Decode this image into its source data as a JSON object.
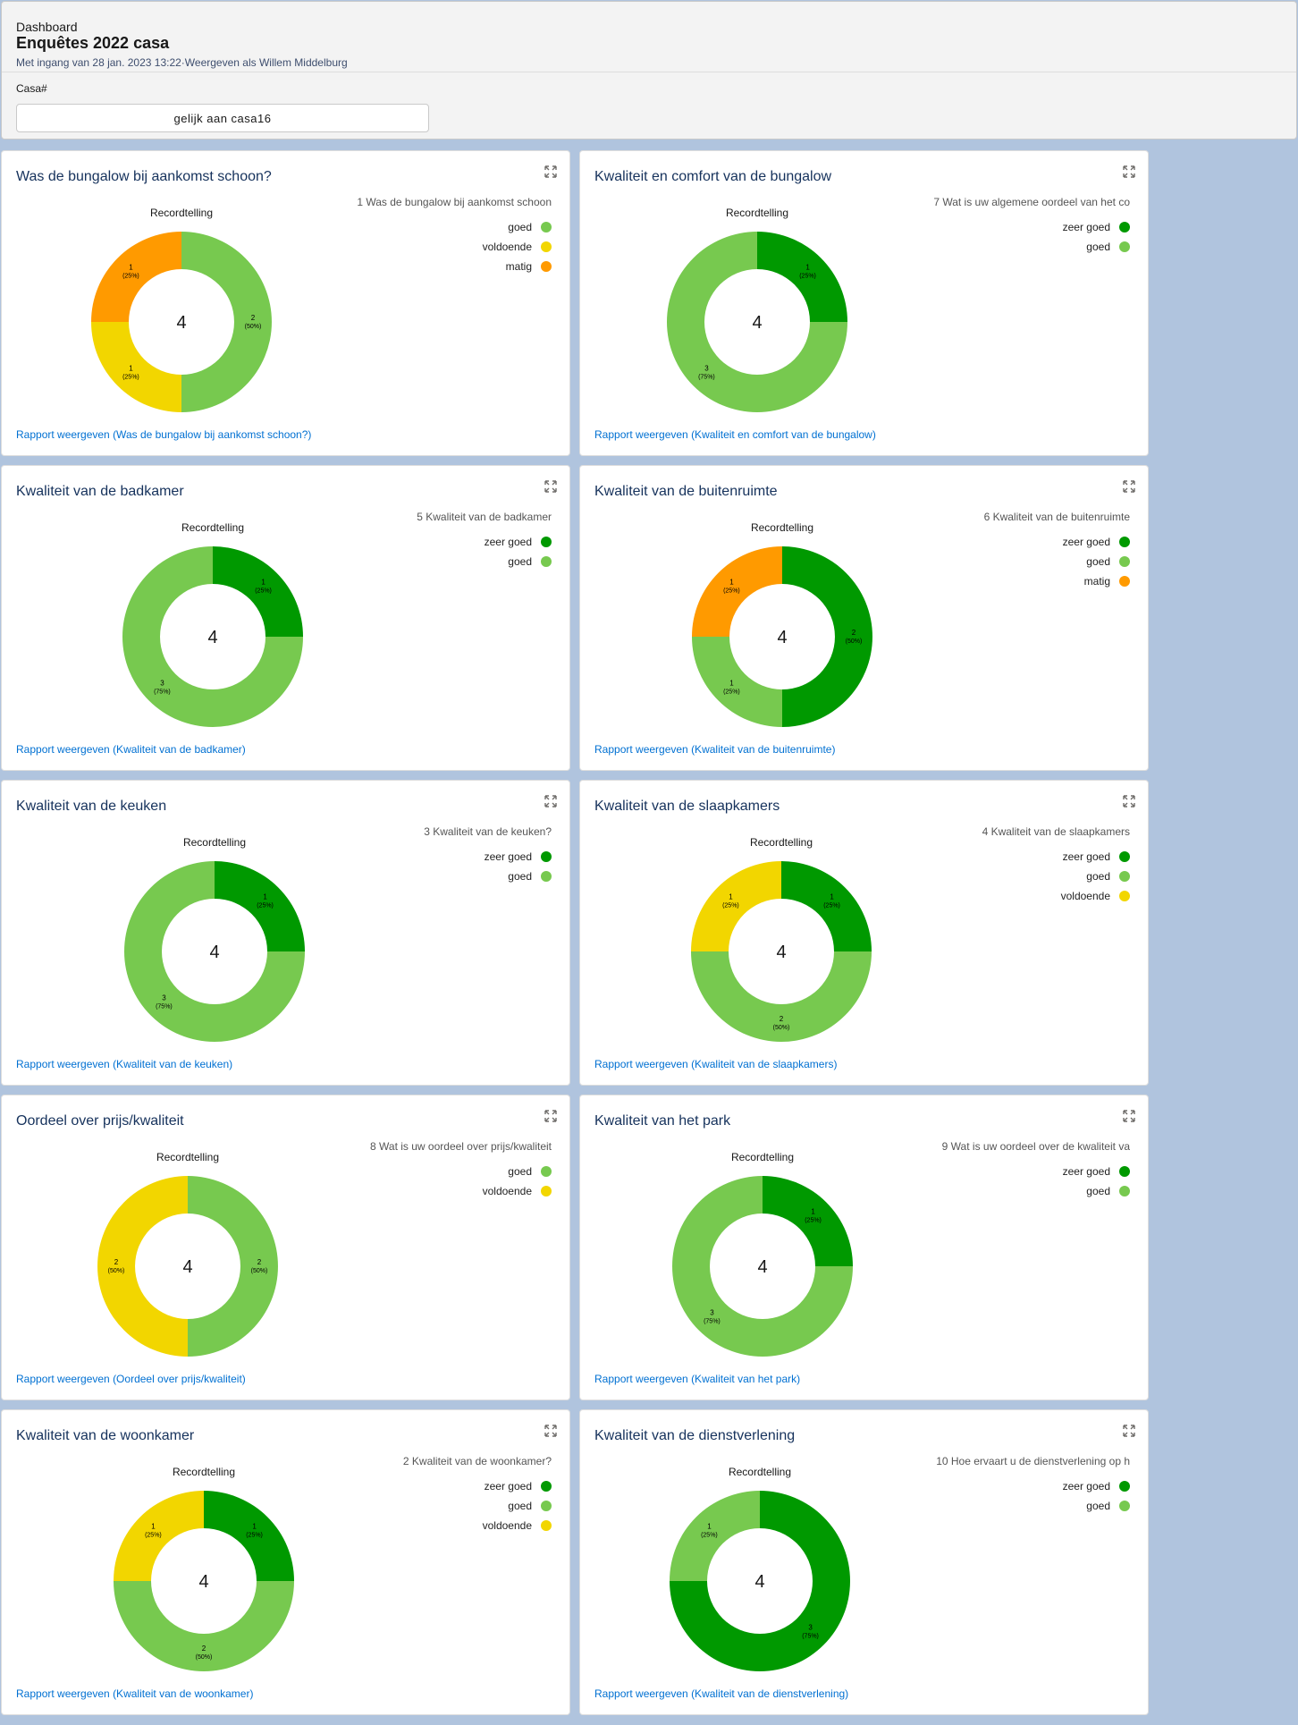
{
  "header": {
    "label": "Dashboard",
    "title": "Enquêtes 2022 casa",
    "subtitle": "Met ingang van 28 jan. 2023 13:22·Weergeven als Willem Middelburg",
    "filter_label": "Casa#",
    "filter_value": "gelijk aan casa16"
  },
  "colors": {
    "zeer goed": "#009900",
    "goed": "#77c94f",
    "voldoende": "#f2d600",
    "matig": "#ff9a00"
  },
  "cards": [
    {
      "title": "Was de bungalow bij aankomst schoon?",
      "chart_label": "Recordtelling",
      "legend_title": "1 Was de bungalow bij aankomst schoon",
      "total": "4",
      "link": "Rapport weergeven (Was de bungalow bij aankomst schoon?)",
      "chart_data": {
        "type": "pie",
        "donut": true,
        "legend": "right",
        "slices": [
          {
            "label": "goed",
            "value": 2,
            "pct": "(50%)"
          },
          {
            "label": "voldoende",
            "value": 1,
            "pct": "(25%)"
          },
          {
            "label": "matig",
            "value": 1,
            "pct": "(25%)"
          }
        ]
      }
    },
    {
      "title": "Kwaliteit en comfort van de bungalow",
      "chart_label": "Recordtelling",
      "legend_title": "7 Wat is uw  algemene oordeel van het co",
      "total": "4",
      "link": "Rapport weergeven (Kwaliteit en comfort van de bungalow)",
      "chart_data": {
        "type": "pie",
        "donut": true,
        "legend": "right",
        "slices": [
          {
            "label": "zeer goed",
            "value": 1,
            "pct": "(25%)"
          },
          {
            "label": "goed",
            "value": 3,
            "pct": "(75%)"
          }
        ]
      }
    },
    {
      "title": "Kwaliteit van de badkamer",
      "chart_label": "Recordtelling",
      "legend_title": "5 Kwaliteit van de badkamer",
      "total": "4",
      "link": "Rapport weergeven (Kwaliteit van de badkamer)",
      "chart_data": {
        "type": "pie",
        "donut": true,
        "legend": "right",
        "slices": [
          {
            "label": "zeer goed",
            "value": 1,
            "pct": "(25%)"
          },
          {
            "label": "goed",
            "value": 3,
            "pct": "(75%)"
          }
        ]
      }
    },
    {
      "title": "Kwaliteit van de buitenruimte",
      "chart_label": "Recordtelling",
      "legend_title": "6 Kwaliteit van de buitenruimte",
      "total": "4",
      "link": "Rapport weergeven (Kwaliteit van de buitenruimte)",
      "chart_data": {
        "type": "pie",
        "donut": true,
        "legend": "right",
        "slices": [
          {
            "label": "zeer goed",
            "value": 2,
            "pct": "(50%)"
          },
          {
            "label": "goed",
            "value": 1,
            "pct": "(25%)"
          },
          {
            "label": "matig",
            "value": 1,
            "pct": "(25%)"
          }
        ]
      }
    },
    {
      "title": "Kwaliteit van de keuken",
      "chart_label": "Recordtelling",
      "legend_title": "3 Kwaliteit van de keuken?",
      "total": "4",
      "link": "Rapport weergeven (Kwaliteit van de keuken)",
      "chart_data": {
        "type": "pie",
        "donut": true,
        "legend": "right",
        "slices": [
          {
            "label": "zeer goed",
            "value": 1,
            "pct": "(25%)"
          },
          {
            "label": "goed",
            "value": 3,
            "pct": "(75%)"
          }
        ]
      }
    },
    {
      "title": "Kwaliteit van de slaapkamers",
      "chart_label": "Recordtelling",
      "legend_title": "4 Kwaliteit van de slaapkamers",
      "total": "4",
      "link": "Rapport weergeven (Kwaliteit van de slaapkamers)",
      "chart_data": {
        "type": "pie",
        "donut": true,
        "legend": "right",
        "slices": [
          {
            "label": "zeer goed",
            "value": 1,
            "pct": "(25%)"
          },
          {
            "label": "goed",
            "value": 2,
            "pct": "(50%)"
          },
          {
            "label": "voldoende",
            "value": 1,
            "pct": "(25%)"
          }
        ]
      }
    },
    {
      "title": "Oordeel over prijs/kwaliteit",
      "chart_label": "Recordtelling",
      "legend_title": "8 Wat is uw oordeel over prijs/kwaliteit",
      "total": "4",
      "link": "Rapport weergeven (Oordeel over prijs/kwaliteit)",
      "chart_data": {
        "type": "pie",
        "donut": true,
        "legend": "right",
        "slices": [
          {
            "label": "goed",
            "value": 2,
            "pct": "(50%)"
          },
          {
            "label": "voldoende",
            "value": 2,
            "pct": "(50%)"
          }
        ]
      }
    },
    {
      "title": "Kwaliteit van het park",
      "chart_label": "Recordtelling",
      "legend_title": "9 Wat is uw oordeel over de kwaliteit va",
      "total": "4",
      "link": "Rapport weergeven (Kwaliteit van het park)",
      "chart_data": {
        "type": "pie",
        "donut": true,
        "legend": "right",
        "slices": [
          {
            "label": "zeer goed",
            "value": 1,
            "pct": "(25%)"
          },
          {
            "label": "goed",
            "value": 3,
            "pct": "(75%)"
          }
        ]
      }
    },
    {
      "title": "Kwaliteit van de woonkamer",
      "chart_label": "Recordtelling",
      "legend_title": "2 Kwaliteit van de woonkamer?",
      "total": "4",
      "link": "Rapport weergeven (Kwaliteit van de woonkamer)",
      "chart_data": {
        "type": "pie",
        "donut": true,
        "legend": "right",
        "slices": [
          {
            "label": "zeer goed",
            "value": 1,
            "pct": "(25%)"
          },
          {
            "label": "goed",
            "value": 2,
            "pct": "(50%)"
          },
          {
            "label": "voldoende",
            "value": 1,
            "pct": "(25%)"
          }
        ]
      }
    },
    {
      "title": "Kwaliteit van de dienstverlening",
      "chart_label": "Recordtelling",
      "legend_title": "10 Hoe ervaart u de dienstverlening op h",
      "total": "4",
      "link": "Rapport weergeven (Kwaliteit van de dienstverlening)",
      "chart_data": {
        "type": "pie",
        "donut": true,
        "legend": "right",
        "slices": [
          {
            "label": "zeer goed",
            "value": 3,
            "pct": "(75%)"
          },
          {
            "label": "goed",
            "value": 1,
            "pct": "(25%)"
          }
        ]
      }
    }
  ]
}
